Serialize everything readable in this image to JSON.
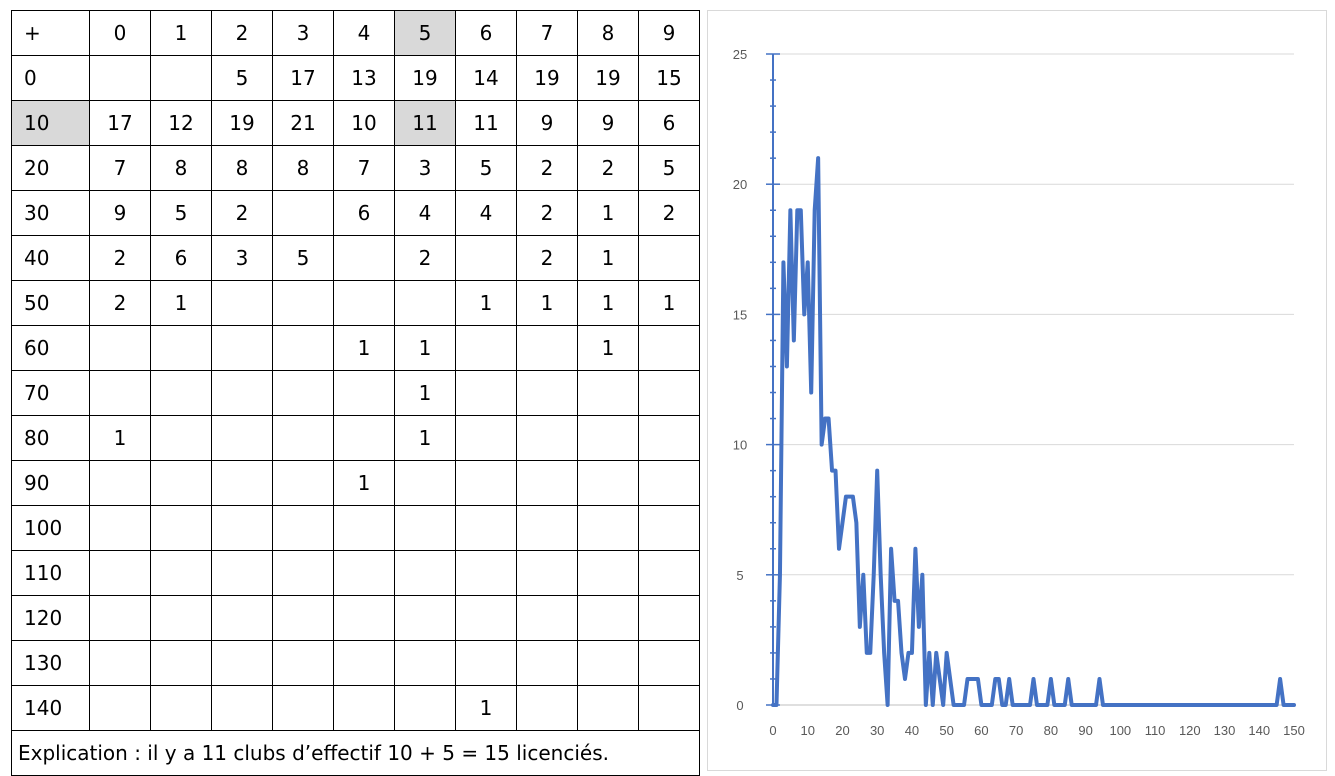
{
  "table": {
    "header": [
      "+",
      "0",
      "1",
      "2",
      "3",
      "4",
      "5",
      "6",
      "7",
      "8",
      "9"
    ],
    "rows": [
      {
        "label": "0",
        "cells": [
          "",
          "",
          "5",
          "17",
          "13",
          "19",
          "14",
          "19",
          "19",
          "15"
        ]
      },
      {
        "label": "10",
        "cells": [
          "17",
          "12",
          "19",
          "21",
          "10",
          "11",
          "11",
          "9",
          "9",
          "6"
        ]
      },
      {
        "label": "20",
        "cells": [
          "7",
          "8",
          "8",
          "8",
          "7",
          "3",
          "5",
          "2",
          "2",
          "5"
        ]
      },
      {
        "label": "30",
        "cells": [
          "9",
          "5",
          "2",
          "",
          "6",
          "4",
          "4",
          "2",
          "1",
          "2"
        ]
      },
      {
        "label": "40",
        "cells": [
          "2",
          "6",
          "3",
          "5",
          "",
          "2",
          "",
          "2",
          "1",
          ""
        ]
      },
      {
        "label": "50",
        "cells": [
          "2",
          "1",
          "",
          "",
          "",
          "",
          "1",
          "1",
          "1",
          "1"
        ]
      },
      {
        "label": "60",
        "cells": [
          "",
          "",
          "",
          "",
          "1",
          "1",
          "",
          "",
          "1",
          ""
        ]
      },
      {
        "label": "70",
        "cells": [
          "",
          "",
          "",
          "",
          "",
          "1",
          "",
          "",
          "",
          ""
        ]
      },
      {
        "label": "80",
        "cells": [
          "1",
          "",
          "",
          "",
          "",
          "1",
          "",
          "",
          "",
          ""
        ]
      },
      {
        "label": "90",
        "cells": [
          "",
          "",
          "",
          "",
          "1",
          "",
          "",
          "",
          "",
          ""
        ]
      },
      {
        "label": "100",
        "cells": [
          "",
          "",
          "",
          "",
          "",
          "",
          "",
          "",
          "",
          ""
        ]
      },
      {
        "label": "110",
        "cells": [
          "",
          "",
          "",
          "",
          "",
          "",
          "",
          "",
          "",
          ""
        ]
      },
      {
        "label": "120",
        "cells": [
          "",
          "",
          "",
          "",
          "",
          "",
          "",
          "",
          "",
          ""
        ]
      },
      {
        "label": "130",
        "cells": [
          "",
          "",
          "",
          "",
          "",
          "",
          "",
          "",
          "",
          ""
        ]
      },
      {
        "label": "140",
        "cells": [
          "",
          "",
          "",
          "",
          "",
          "",
          "1",
          "",
          "",
          ""
        ]
      }
    ],
    "explanation": "Explication : il y a 11 clubs d’effectif 10 + 5 = 15 licenciés.",
    "highlight_color": "#d9d9d9"
  },
  "chart_data": {
    "type": "line",
    "title": "",
    "xlabel": "",
    "ylabel": "",
    "xlim": [
      0,
      150
    ],
    "ylim": [
      0,
      25
    ],
    "x_ticks": [
      "0",
      "10",
      "20",
      "30",
      "40",
      "50",
      "60",
      "70",
      "80",
      "90",
      "100",
      "110",
      "120",
      "130",
      "140",
      "150"
    ],
    "y_ticks": [
      "0",
      "5",
      "10",
      "15",
      "20",
      "25"
    ],
    "grid": "horizontal",
    "line_color": "#4472c4",
    "x": [
      0,
      1,
      2,
      3,
      4,
      5,
      6,
      7,
      8,
      9,
      10,
      11,
      12,
      13,
      14,
      15,
      16,
      17,
      18,
      19,
      20,
      21,
      22,
      23,
      24,
      25,
      26,
      27,
      28,
      29,
      30,
      31,
      32,
      33,
      34,
      35,
      36,
      37,
      38,
      39,
      40,
      41,
      42,
      43,
      44,
      45,
      46,
      47,
      48,
      49,
      50,
      51,
      52,
      53,
      54,
      55,
      56,
      57,
      58,
      59,
      60,
      61,
      62,
      63,
      64,
      65,
      66,
      67,
      68,
      69,
      70,
      71,
      72,
      73,
      74,
      75,
      76,
      77,
      78,
      79,
      80,
      81,
      82,
      83,
      84,
      85,
      86,
      87,
      88,
      89,
      90,
      91,
      92,
      93,
      94,
      95,
      96,
      97,
      98,
      99,
      100,
      101,
      102,
      103,
      104,
      105,
      106,
      107,
      108,
      109,
      110,
      111,
      112,
      113,
      114,
      115,
      116,
      117,
      118,
      119,
      120,
      121,
      122,
      123,
      124,
      125,
      126,
      127,
      128,
      129,
      130,
      131,
      132,
      133,
      134,
      135,
      136,
      137,
      138,
      139,
      140,
      141,
      142,
      143,
      144,
      145,
      146,
      147,
      148,
      149,
      150
    ],
    "values": [
      0,
      0,
      5,
      17,
      13,
      19,
      14,
      19,
      19,
      15,
      17,
      12,
      19,
      21,
      10,
      11,
      11,
      9,
      9,
      6,
      7,
      8,
      8,
      8,
      7,
      3,
      5,
      2,
      2,
      5,
      9,
      5,
      2,
      0,
      6,
      4,
      4,
      2,
      1,
      2,
      2,
      6,
      3,
      5,
      0,
      2,
      0,
      2,
      1,
      0,
      2,
      1,
      0,
      0,
      0,
      0,
      1,
      1,
      1,
      1,
      0,
      0,
      0,
      0,
      1,
      1,
      0,
      0,
      1,
      0,
      0,
      0,
      0,
      0,
      0,
      1,
      0,
      0,
      0,
      0,
      1,
      0,
      0,
      0,
      0,
      1,
      0,
      0,
      0,
      0,
      0,
      0,
      0,
      0,
      1,
      0,
      0,
      0,
      0,
      0,
      0,
      0,
      0,
      0,
      0,
      0,
      0,
      0,
      0,
      0,
      0,
      0,
      0,
      0,
      0,
      0,
      0,
      0,
      0,
      0,
      0,
      0,
      0,
      0,
      0,
      0,
      0,
      0,
      0,
      0,
      0,
      0,
      0,
      0,
      0,
      0,
      0,
      0,
      0,
      0,
      0,
      0,
      0,
      0,
      0,
      0,
      1,
      0,
      0,
      0,
      0
    ]
  }
}
